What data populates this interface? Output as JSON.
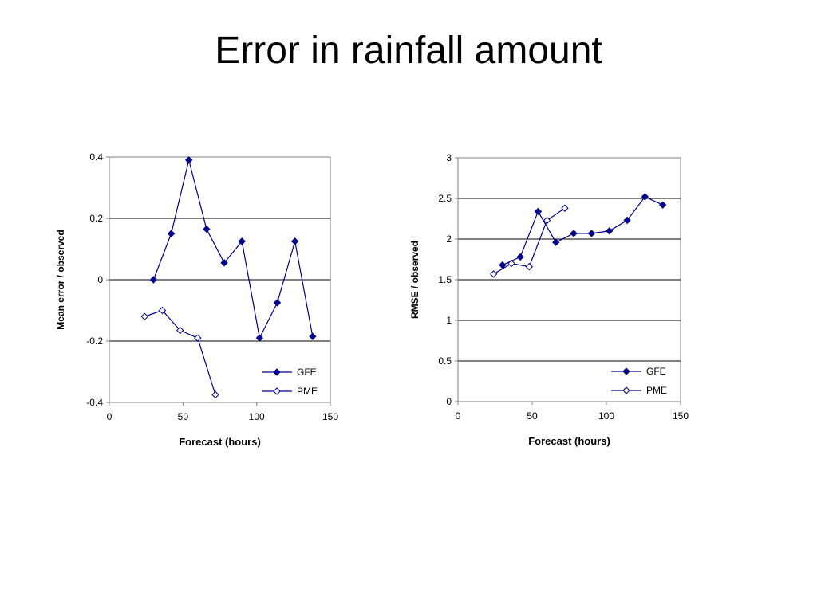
{
  "slide": {
    "title": "Error in rainfall amount"
  },
  "colors": {
    "series": "#00008b",
    "gridline": "#000000",
    "axis": "#808080",
    "plot_border": "#808080",
    "text": "#000000",
    "background": "#ffffff"
  },
  "chart_data": [
    {
      "type": "line",
      "title": "",
      "xlabel": "Forecast (hours)",
      "ylabel": "Mean error / observed",
      "xlim": [
        0,
        150
      ],
      "ylim": [
        -0.4,
        0.4
      ],
      "x_ticks": [
        0,
        50,
        100,
        150
      ],
      "x_tick_labels": [
        "0",
        "50",
        "100",
        "150"
      ],
      "y_ticks": [
        -0.4,
        -0.2,
        0,
        0.2,
        0.4
      ],
      "y_tick_labels": [
        "-0.4",
        "-0.2",
        "0",
        "0.2",
        "0.4"
      ],
      "grid": "horizontal major gridlines",
      "legend_position": "bottom-right",
      "series": [
        {
          "name": "GFE",
          "marker": "filled-diamond",
          "x": [
            30,
            42,
            54,
            66,
            78,
            90,
            102,
            114,
            126,
            138
          ],
          "y": [
            0.0,
            0.15,
            0.39,
            0.165,
            0.055,
            0.125,
            -0.19,
            -0.075,
            0.125,
            -0.185
          ]
        },
        {
          "name": "PME",
          "marker": "open-diamond",
          "x": [
            24,
            36,
            48,
            60,
            72
          ],
          "y": [
            -0.12,
            -0.1,
            -0.165,
            -0.19,
            -0.375
          ]
        }
      ]
    },
    {
      "type": "line",
      "title": "",
      "xlabel": "Forecast (hours)",
      "ylabel": "RMSE / observed",
      "xlim": [
        0,
        150
      ],
      "ylim": [
        0,
        3
      ],
      "x_ticks": [
        0,
        50,
        100,
        150
      ],
      "x_tick_labels": [
        "0",
        "50",
        "100",
        "150"
      ],
      "y_ticks": [
        0,
        0.5,
        1,
        1.5,
        2,
        2.5,
        3
      ],
      "y_tick_labels": [
        "0",
        "0.5",
        "1",
        "1.5",
        "2",
        "2.5",
        "3"
      ],
      "grid": "horizontal major gridlines",
      "legend_position": "bottom-right",
      "series": [
        {
          "name": "GFE",
          "marker": "filled-diamond",
          "x": [
            30,
            42,
            54,
            66,
            78,
            90,
            102,
            114,
            126,
            138
          ],
          "y": [
            1.68,
            1.78,
            2.34,
            1.96,
            2.07,
            2.07,
            2.1,
            2.23,
            2.52,
            2.42
          ]
        },
        {
          "name": "PME",
          "marker": "open-diamond",
          "x": [
            24,
            36,
            48,
            60,
            72
          ],
          "y": [
            1.57,
            1.7,
            1.66,
            2.23,
            2.38
          ]
        }
      ]
    }
  ]
}
